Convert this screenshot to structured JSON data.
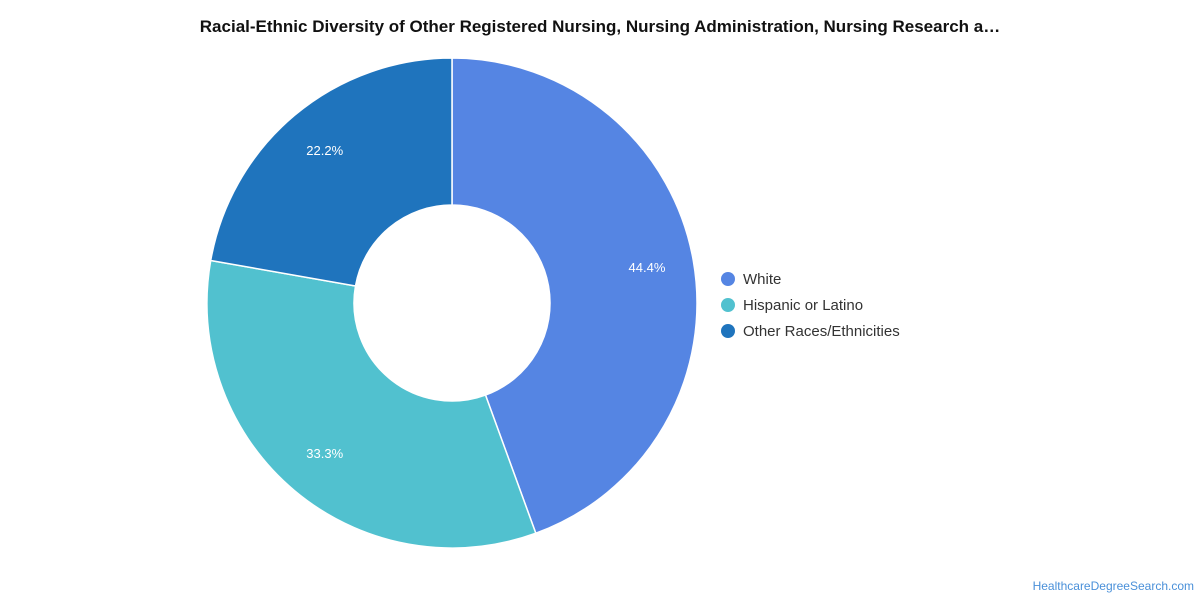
{
  "chart_data": {
    "type": "pie",
    "title": "Racial-Ethnic Diversity of Other Registered Nursing, Nursing Administration, Nursing Research a…",
    "categories": [
      "White",
      "Hispanic or Latino",
      "Other Races/Ethnicities"
    ],
    "values": [
      44.4,
      33.3,
      22.2
    ],
    "value_labels": [
      "44.4%",
      "33.3%",
      "22.2%"
    ],
    "colors": [
      "#5585e3",
      "#51c1cf",
      "#1f74bd"
    ],
    "style": "donut",
    "legend_position": "right"
  },
  "footer": {
    "source": "HealthcareDegreeSearch.com"
  }
}
